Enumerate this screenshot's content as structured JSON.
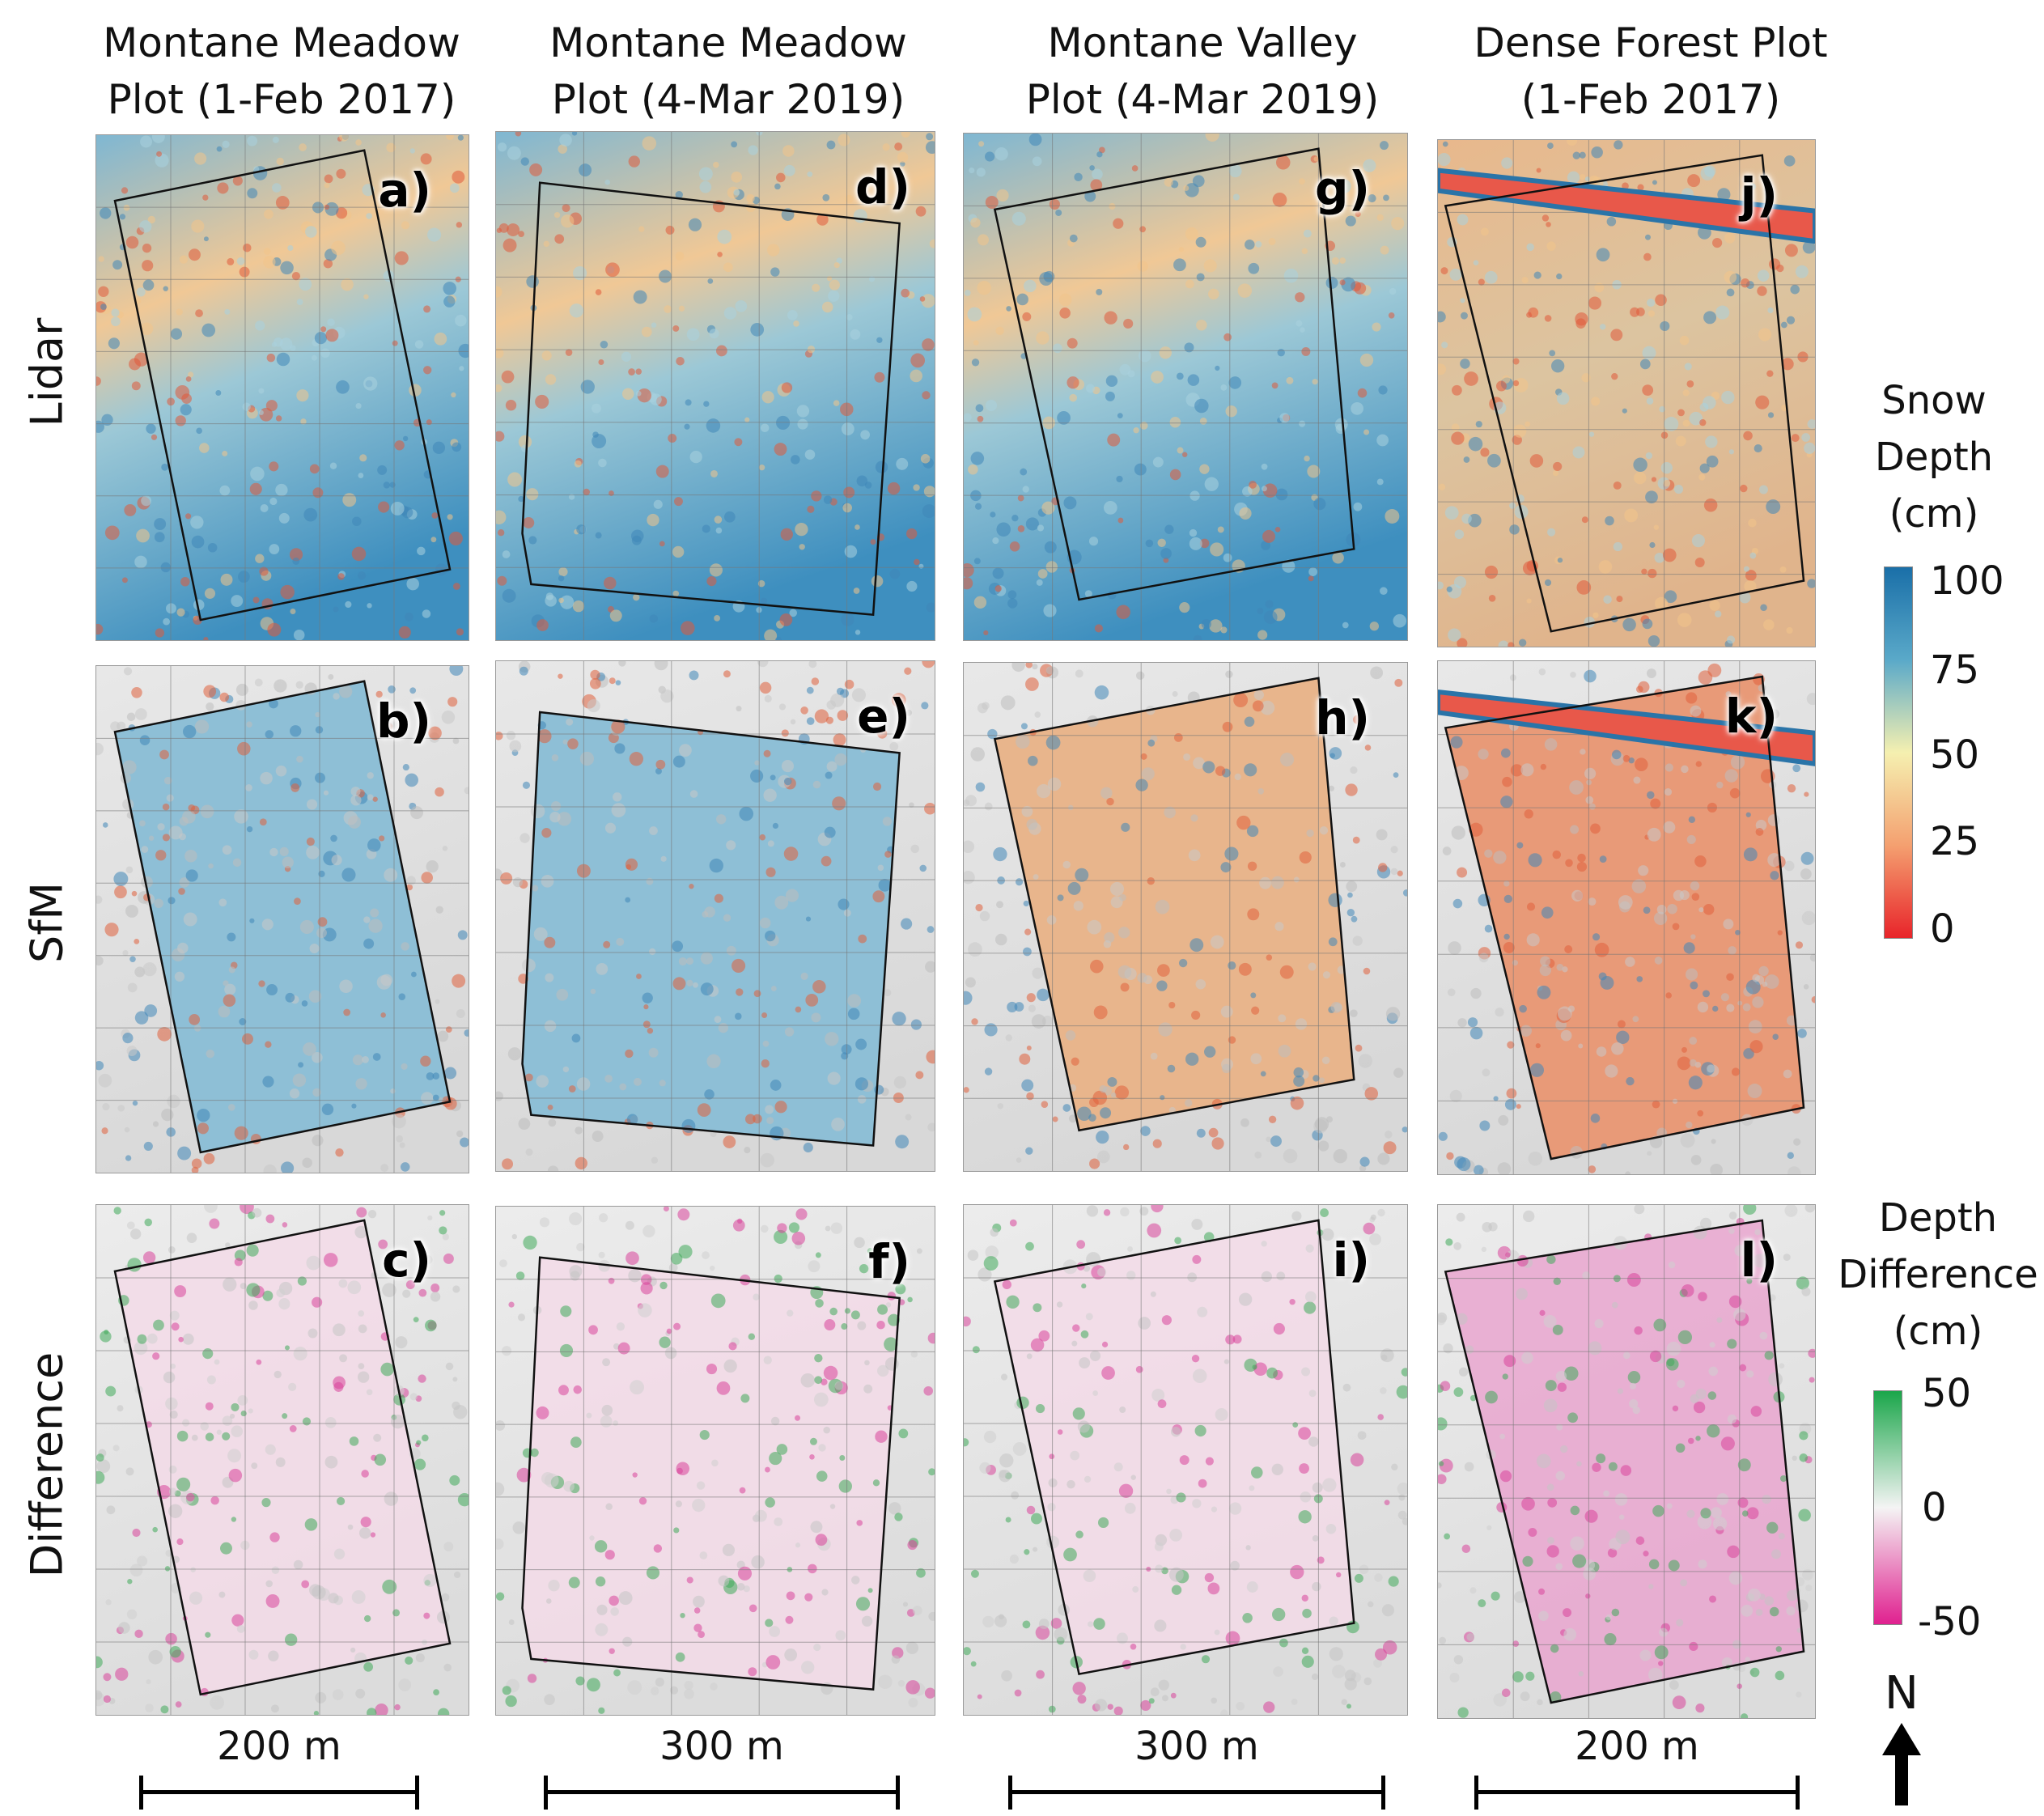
{
  "columns": [
    {
      "title": "Montane Meadow\nPlot (1-Feb 2017)"
    },
    {
      "title": "Montane Meadow\nPlot (4-Mar 2019)"
    },
    {
      "title": "Montane Valley\nPlot (4-Mar 2019)"
    },
    {
      "title": "Dense Forest Plot\n(1-Feb 2017)"
    }
  ],
  "rows": [
    {
      "title": "Lidar"
    },
    {
      "title": "SfM"
    },
    {
      "title": "Difference"
    }
  ],
  "panels": [
    {
      "letter": "a)"
    },
    {
      "letter": "d)"
    },
    {
      "letter": "g)"
    },
    {
      "letter": "j)"
    },
    {
      "letter": "b)"
    },
    {
      "letter": "e)"
    },
    {
      "letter": "h)"
    },
    {
      "letter": "k)"
    },
    {
      "letter": "c)"
    },
    {
      "letter": "f)"
    },
    {
      "letter": "i)"
    },
    {
      "letter": "l)"
    }
  ],
  "legend_depth": {
    "title": "Snow\nDepth\n(cm)",
    "ticks": [
      "100",
      "75",
      "50",
      "25",
      "0"
    ],
    "colors": [
      "#1a6fa8",
      "#5aa9c9",
      "#f5f0b0",
      "#f4a070",
      "#e8242a"
    ]
  },
  "legend_diff": {
    "title": "Depth\nDifference\n(cm)",
    "ticks": [
      "50",
      "0",
      "-50"
    ],
    "colors": [
      "#1aa64a",
      "#f4f4f4",
      "#e0208f"
    ]
  },
  "scalebars": [
    {
      "label": "200 m"
    },
    {
      "label": "300 m"
    },
    {
      "label": "300 m"
    },
    {
      "label": "200 m"
    }
  ],
  "north": {
    "label": "N"
  }
}
